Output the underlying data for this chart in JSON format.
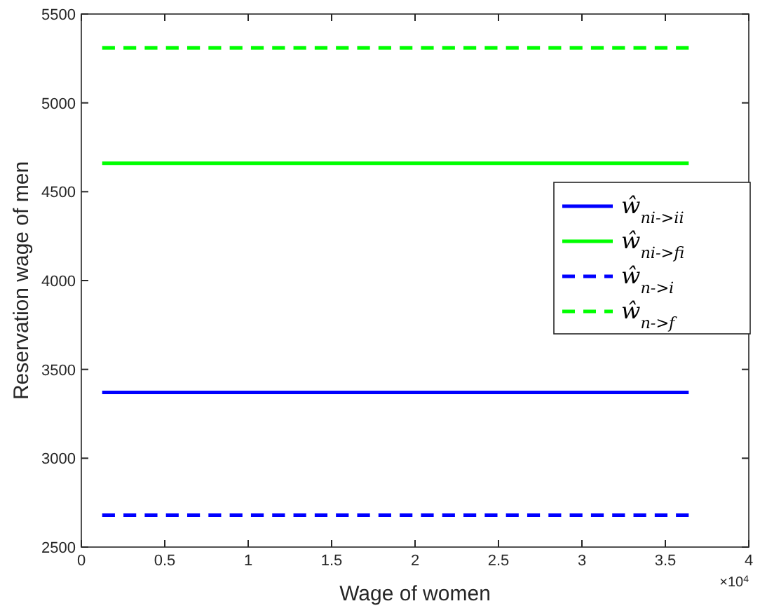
{
  "chart_data": {
    "type": "line",
    "xlabel": "Wage of women",
    "ylabel": "Reservation wage of men",
    "xlim": [
      0,
      4
    ],
    "xticks": [
      0,
      0.5,
      1,
      1.5,
      2,
      2.5,
      3,
      3.5,
      4
    ],
    "ylim": [
      2500,
      5500
    ],
    "yticks": [
      2500,
      3000,
      3500,
      4000,
      4500,
      5000,
      5500
    ],
    "x": [
      0.125,
      3.64
    ],
    "series": [
      {
        "name": "ŵ$_{ni->ii}$",
        "color": "#0000ff",
        "values": [
          3370,
          3370
        ],
        "line_style": "solid"
      },
      {
        "name": "ŵ$_{ni->fi}$",
        "color": "#00ff00",
        "values": [
          4660,
          4660
        ],
        "line_style": "solid"
      },
      {
        "name": "ŵ$_{n->i}$",
        "color": "#0000ff",
        "values": [
          2680,
          2680
        ],
        "line_style": "dashed"
      },
      {
        "name": "ŵ$_{n->f}$",
        "color": "#00ff00",
        "values": [
          5310,
          5310
        ],
        "line_style": "dashed"
      }
    ],
    "annotations": [
      "×10$^{4}$"
    ],
    "legend": "right",
    "marker": "none",
    "grid": false
  }
}
